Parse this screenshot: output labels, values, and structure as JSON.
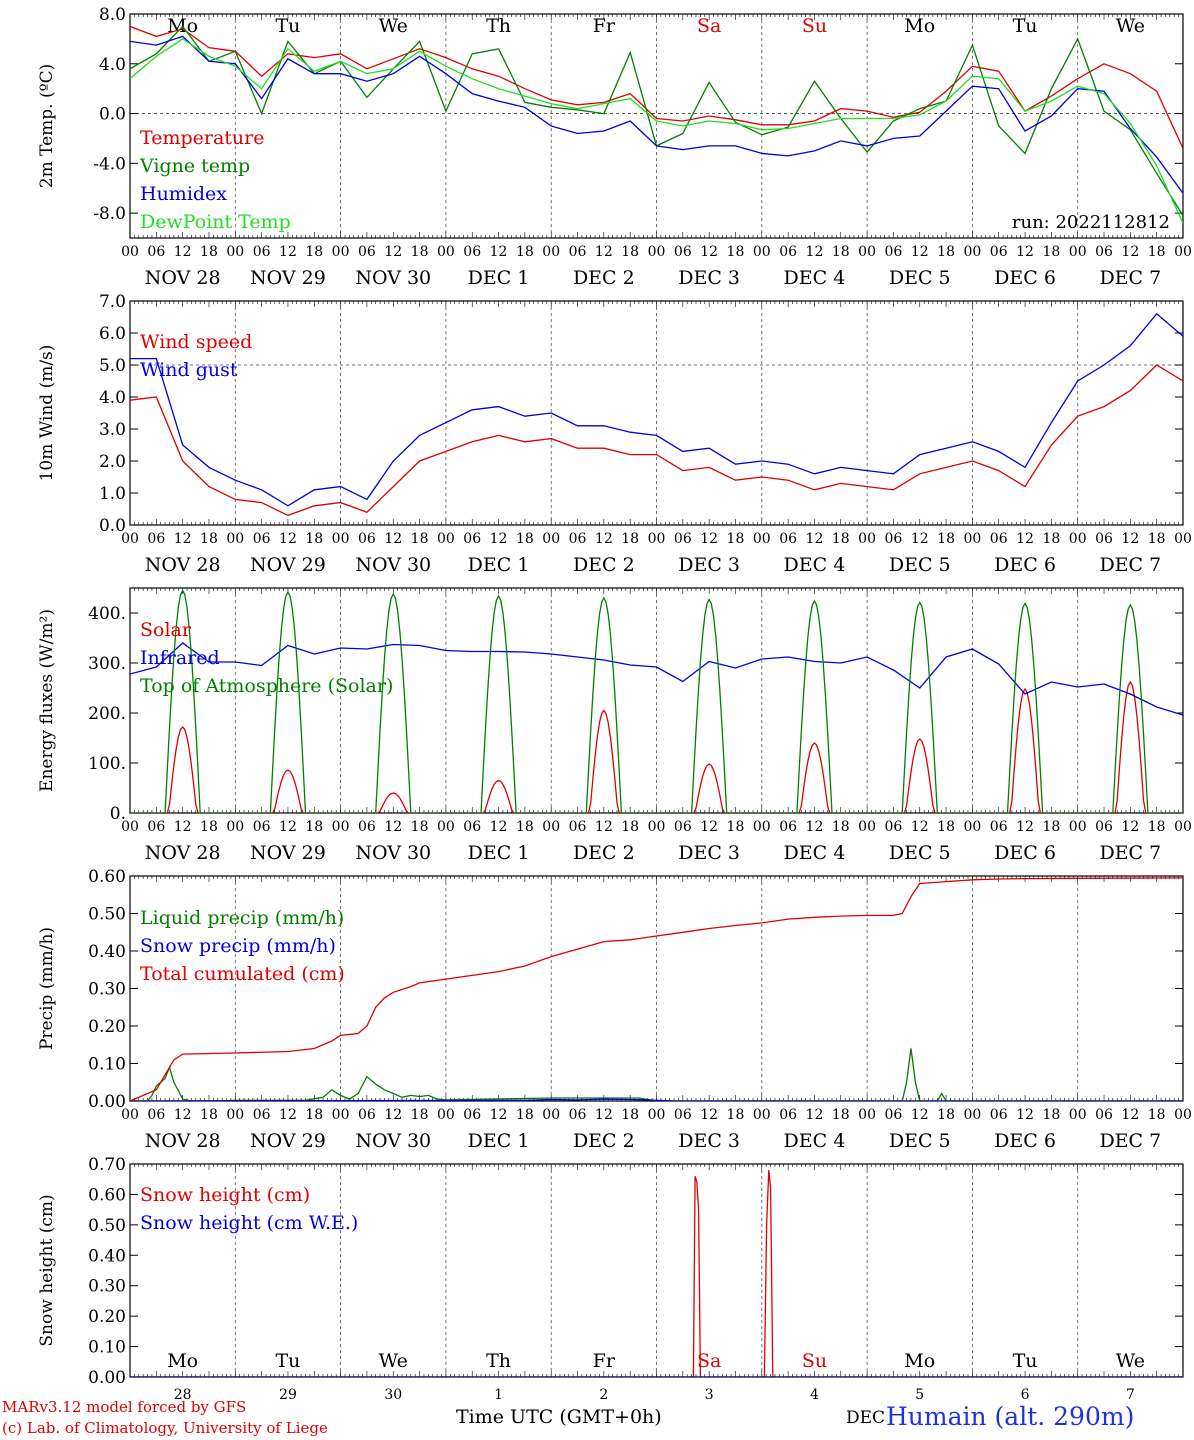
{
  "chart_data": [
    {
      "type": "line",
      "ylabel": "2m Temp. (ºC)",
      "ylim": [
        -10,
        8
      ],
      "yticks": [
        -8,
        -4,
        0,
        4,
        8
      ],
      "ytick_labels": [
        "-8.0",
        "-4.0",
        "0.0",
        "4.0",
        "8.0"
      ],
      "zero_line": 0,
      "x_unit": "hours since NOV 28 00 UTC",
      "x": [
        0,
        6,
        12,
        18,
        24,
        30,
        36,
        42,
        48,
        54,
        60,
        66,
        72,
        78,
        84,
        90,
        96,
        102,
        108,
        114,
        120,
        126,
        132,
        138,
        144,
        150,
        156,
        162,
        168,
        174,
        180,
        186,
        192,
        198,
        204,
        210,
        216,
        222,
        228,
        234,
        240
      ],
      "series": [
        {
          "name": "Temperature",
          "color": "#e00000",
          "values": [
            7.0,
            6.2,
            6.8,
            5.3,
            5.0,
            3.0,
            4.8,
            4.5,
            4.8,
            3.6,
            4.4,
            5.2,
            4.5,
            3.6,
            3.0,
            2.0,
            1.1,
            0.7,
            0.9,
            1.6,
            -0.4,
            -0.6,
            -0.2,
            -0.5,
            -0.9,
            -0.9,
            -0.6,
            0.4,
            0.2,
            -0.3,
            0.1,
            1.8,
            3.8,
            3.4,
            0.2,
            1.4,
            2.8,
            4.0,
            3.2,
            1.8,
            -2.8
          ]
        },
        {
          "name": "Vigne temp",
          "color": "#008000",
          "values": [
            3.6,
            4.8,
            7.0,
            4.2,
            5.0,
            0.0,
            5.8,
            3.2,
            4.2,
            1.3,
            3.6,
            5.8,
            0.2,
            4.8,
            5.2,
            0.9,
            0.5,
            0.3,
            0.0,
            4.9,
            -2.6,
            -1.6,
            2.5,
            -0.7,
            -1.7,
            -1.1,
            2.6,
            -0.4,
            -3.1,
            -0.6,
            0.4,
            1.0,
            5.5,
            -1.0,
            -3.2,
            2.0,
            6.0,
            0.2,
            -1.3,
            -4.8,
            -8.2
          ]
        },
        {
          "name": "Humidex",
          "color": "#0000e0",
          "values": [
            5.8,
            5.5,
            6.2,
            4.2,
            4.0,
            1.2,
            4.4,
            3.2,
            3.2,
            2.6,
            3.2,
            4.6,
            3.2,
            1.6,
            1.0,
            0.5,
            -1.0,
            -1.6,
            -1.4,
            -0.6,
            -2.6,
            -2.9,
            -2.6,
            -2.6,
            -3.2,
            -3.4,
            -3.0,
            -2.2,
            -2.6,
            -2.0,
            -1.8,
            0.2,
            2.2,
            2.0,
            -1.4,
            -0.2,
            2.0,
            1.8,
            -1.2,
            -3.5,
            -6.4
          ]
        },
        {
          "name": "DewPoint Temp",
          "color": "#22dd22",
          "values": [
            2.8,
            4.6,
            6.0,
            4.6,
            3.8,
            2.0,
            5.2,
            3.4,
            4.2,
            3.2,
            3.6,
            5.0,
            3.8,
            2.8,
            2.0,
            1.4,
            0.8,
            0.4,
            0.8,
            1.2,
            -0.6,
            -1.0,
            -0.6,
            -0.8,
            -1.3,
            -1.2,
            -0.8,
            -0.4,
            -0.4,
            -0.4,
            -0.1,
            1.0,
            3.0,
            2.8,
            0.2,
            1.0,
            2.2,
            1.6,
            -0.8,
            -4.2,
            -8.8
          ]
        }
      ],
      "legend_placement": "top-left",
      "annotation": "run: 2022112812"
    },
    {
      "type": "line",
      "ylabel": "10m Wind (m/s)",
      "ylim": [
        0,
        7
      ],
      "yticks": [
        0,
        1,
        2,
        3,
        4,
        5,
        6,
        7
      ],
      "ytick_labels": [
        "0.0",
        "1.0",
        "2.0",
        "3.0",
        "4.0",
        "5.0",
        "6.0",
        "7.0"
      ],
      "ref_line": 5,
      "x_unit": "hours since NOV 28 00 UTC",
      "x": [
        0,
        6,
        12,
        18,
        24,
        30,
        36,
        42,
        48,
        54,
        60,
        66,
        72,
        78,
        84,
        90,
        96,
        102,
        108,
        114,
        120,
        126,
        132,
        138,
        144,
        150,
        156,
        162,
        168,
        174,
        180,
        186,
        192,
        198,
        204,
        210,
        216,
        222,
        228,
        234,
        240
      ],
      "series": [
        {
          "name": "Wind speed",
          "color": "#e00000",
          "values": [
            3.9,
            4.0,
            2.0,
            1.2,
            0.8,
            0.7,
            0.3,
            0.6,
            0.7,
            0.4,
            1.2,
            2.0,
            2.3,
            2.6,
            2.8,
            2.6,
            2.7,
            2.4,
            2.4,
            2.2,
            2.2,
            1.7,
            1.8,
            1.4,
            1.5,
            1.4,
            1.1,
            1.3,
            1.2,
            1.1,
            1.6,
            1.8,
            2.0,
            1.7,
            1.2,
            2.5,
            3.4,
            3.7,
            4.2,
            5.0,
            4.5
          ]
        },
        {
          "name": "Wind gust",
          "color": "#0000e0",
          "values": [
            5.2,
            5.2,
            2.5,
            1.8,
            1.4,
            1.1,
            0.6,
            1.1,
            1.2,
            0.8,
            2.0,
            2.8,
            3.2,
            3.6,
            3.7,
            3.4,
            3.5,
            3.1,
            3.1,
            2.9,
            2.8,
            2.3,
            2.4,
            1.9,
            2.0,
            1.9,
            1.6,
            1.8,
            1.7,
            1.6,
            2.2,
            2.4,
            2.6,
            2.3,
            1.8,
            3.2,
            4.5,
            5.0,
            5.6,
            6.6,
            5.9
          ]
        }
      ],
      "legend_placement": "top-left"
    },
    {
      "type": "line",
      "ylabel": "Energy fluxes (W/m²)",
      "ylim": [
        0,
        450
      ],
      "yticks": [
        0,
        100,
        200,
        300,
        400
      ],
      "ytick_labels": [
        "0.",
        "100.",
        "200.",
        "300.",
        "400."
      ],
      "x_unit": "hours since NOV 28 00 UTC",
      "diurnal": {
        "noon_hour": 12,
        "toa_peaks": [
          445,
          442,
          438,
          434,
          430,
          427,
          424,
          421,
          419,
          416
        ],
        "toa_halfwidth_h": 4,
        "solar_peaks": [
          172,
          86,
          40,
          65,
          205,
          98,
          140,
          148,
          248,
          262
        ],
        "solar_halfwidth_h": 3.2
      },
      "series": [
        {
          "name": "Solar",
          "color": "#e00000"
        },
        {
          "name": "Infrared",
          "color": "#0000e0",
          "x": [
            0,
            6,
            12,
            18,
            24,
            30,
            36,
            42,
            48,
            54,
            60,
            66,
            72,
            78,
            84,
            90,
            96,
            102,
            108,
            114,
            120,
            126,
            132,
            138,
            144,
            150,
            156,
            162,
            168,
            174,
            180,
            186,
            192,
            198,
            204,
            210,
            216,
            222,
            228,
            234,
            240
          ],
          "values": [
            278,
            292,
            340,
            302,
            302,
            295,
            335,
            318,
            330,
            328,
            337,
            335,
            325,
            323,
            323,
            322,
            318,
            312,
            306,
            296,
            292,
            263,
            303,
            290,
            308,
            312,
            303,
            300,
            312,
            286,
            250,
            312,
            328,
            298,
            238,
            262,
            252,
            258,
            238,
            212,
            196
          ]
        },
        {
          "name": "Top of Atmosphere (Solar)",
          "color": "#008000"
        }
      ],
      "legend_placement": "top-left"
    },
    {
      "type": "line",
      "ylabel": "Precip (mm/h)",
      "ylim": [
        0,
        0.6
      ],
      "yticks": [
        0,
        0.1,
        0.2,
        0.3,
        0.4,
        0.5,
        0.6
      ],
      "ytick_labels": [
        "0.00",
        "0.10",
        "0.20",
        "0.30",
        "0.40",
        "0.50",
        "0.60"
      ],
      "x_unit": "hours since NOV 28 00 UTC",
      "series": [
        {
          "name": "Liquid precip (mm/h)",
          "color": "#008000",
          "x": [
            0,
            4,
            5,
            6,
            8,
            9,
            10,
            12,
            14,
            20,
            24,
            40,
            44,
            46,
            48,
            50,
            52,
            54,
            56,
            58,
            60,
            62,
            64,
            66,
            68,
            70,
            72,
            96,
            116,
            120,
            176,
            177,
            178,
            179,
            180,
            184,
            185,
            186,
            190,
            240
          ],
          "values": [
            0,
            0,
            0.015,
            0.04,
            0.06,
            0.09,
            0.05,
            0.005,
            0,
            0,
            0.002,
            0.002,
            0.01,
            0.03,
            0.015,
            0.005,
            0.02,
            0.065,
            0.045,
            0.03,
            0.02,
            0.01,
            0.015,
            0.012,
            0.015,
            0.005,
            0.003,
            0.008,
            0.008,
            0,
            0,
            0.05,
            0.14,
            0.05,
            0,
            0,
            0.02,
            0,
            0,
            0
          ]
        },
        {
          "name": "Snow precip (mm/h)",
          "color": "#0000e0",
          "x": [
            0,
            90,
            96,
            102,
            108,
            114,
            118,
            124,
            240
          ],
          "values": [
            0,
            0.002,
            0.004,
            0.003,
            0.005,
            0.004,
            0.003,
            0,
            0
          ]
        },
        {
          "name": "Total cumulated (cm)",
          "color": "#e00000",
          "x": [
            0,
            6,
            10,
            12,
            24,
            36,
            42,
            46,
            48,
            52,
            54,
            56,
            58,
            60,
            64,
            66,
            72,
            78,
            84,
            90,
            96,
            102,
            108,
            114,
            120,
            126,
            132,
            138,
            144,
            150,
            156,
            162,
            168,
            174,
            176,
            178,
            180,
            186,
            192,
            198,
            204,
            216,
            240
          ],
          "values": [
            0,
            0.03,
            0.11,
            0.125,
            0.128,
            0.132,
            0.14,
            0.16,
            0.175,
            0.18,
            0.2,
            0.25,
            0.275,
            0.29,
            0.305,
            0.315,
            0.325,
            0.335,
            0.345,
            0.36,
            0.385,
            0.405,
            0.425,
            0.43,
            0.44,
            0.45,
            0.46,
            0.468,
            0.475,
            0.485,
            0.49,
            0.493,
            0.495,
            0.495,
            0.5,
            0.545,
            0.58,
            0.585,
            0.59,
            0.592,
            0.593,
            0.594,
            0.595
          ]
        }
      ],
      "legend_placement": "top-left"
    },
    {
      "type": "line",
      "ylabel": "Snow height (cm)",
      "ylim": [
        0,
        0.7
      ],
      "yticks": [
        0,
        0.1,
        0.2,
        0.3,
        0.4,
        0.5,
        0.6,
        0.7
      ],
      "ytick_labels": [
        "0.00",
        "0.10",
        "0.20",
        "0.30",
        "0.40",
        "0.50",
        "0.60",
        "0.70"
      ],
      "x_unit": "hours since NOV 28 00 UTC",
      "series": [
        {
          "name": "Snow height (cm)",
          "color": "#e00000",
          "x": [
            0,
            128.4,
            128.8,
            129.2,
            129.6,
            130.0,
            144.6,
            145.1,
            145.6,
            146.0,
            146.5,
            240
          ],
          "values": [
            0,
            0,
            0.66,
            0.64,
            0.55,
            0,
            0,
            0.5,
            0.68,
            0.62,
            0,
            0
          ]
        },
        {
          "name": "Snow height (cm W.E.)",
          "color": "#0000e0",
          "x": [
            0,
            240
          ],
          "values": [
            0,
            0
          ]
        }
      ],
      "legend_placement": "top-left"
    }
  ],
  "x_axis": {
    "hour_labels": [
      "00",
      "06",
      "12",
      "18"
    ],
    "end_label": "00",
    "date_labels": [
      "NOV 28",
      "NOV 29",
      "NOV 30",
      "DEC  1",
      "DEC  2",
      "DEC  3",
      "DEC  4",
      "DEC  5",
      "DEC  6",
      "DEC  7"
    ],
    "weekdays": [
      "Mo",
      "Tu",
      "We",
      "Th",
      "Fr",
      "Sa",
      "Su",
      "Mo",
      "Tu",
      "We"
    ],
    "weekend_color": "#e00000",
    "day_numbers": [
      "28",
      "29",
      "30",
      "1",
      "2",
      "3",
      "4",
      "5",
      "6",
      "7"
    ]
  },
  "footer": {
    "credit_line1": "MARv3.12 model forced by GFS",
    "credit_line2": "(c) Lab. of Climatology, University of Liege",
    "xlabel": "Time UTC (GMT+0h)",
    "month": "DEC",
    "station": "Humain (alt. 290m)"
  },
  "colors": {
    "axis": "#000000",
    "station_text": "#2030e0",
    "credit_text": "#e00000"
  }
}
